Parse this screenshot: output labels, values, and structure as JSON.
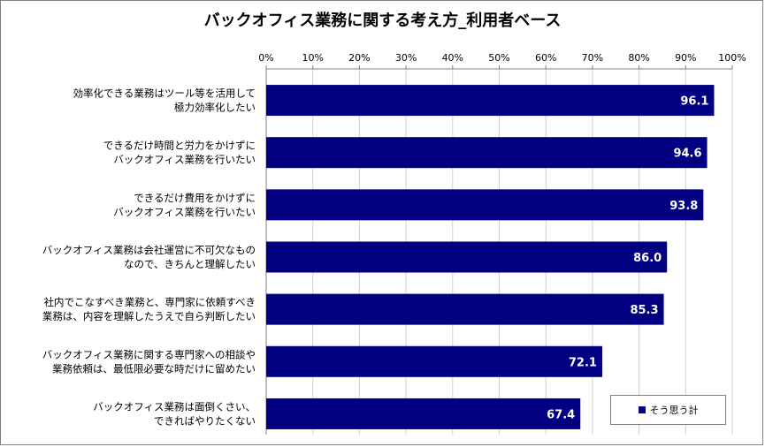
{
  "chart_data": {
    "type": "bar",
    "orientation": "horizontal",
    "title": "バックオフィス業務に関する考え方_利用者ベース",
    "x_ticks": [
      "0%",
      "10%",
      "20%",
      "30%",
      "40%",
      "50%",
      "60%",
      "70%",
      "80%",
      "90%",
      "100%"
    ],
    "xlim": [
      0,
      100
    ],
    "grid": true,
    "legend_position": "bottom-right",
    "categories": [
      [
        "効率化できる業務はツール等を活用して",
        "極力効率化したい"
      ],
      [
        "できるだけ時間と労力をかけずに",
        "バックオフィス業務を行いたい"
      ],
      [
        "できるだけ費用をかけずに",
        "バックオフィス業務を行いたい"
      ],
      [
        "バックオフィス業務は会社運営に不可欠なもの",
        "なので、きちんと理解したい"
      ],
      [
        "社内でこなすべき業務と、専門家に依頼すべき",
        "業務は、内容を理解したうえで自ら判断したい"
      ],
      [
        "バックオフィス業務に関する専門家への相談や",
        "業務依頼は、最低限必要な時だけに留めたい"
      ],
      [
        "バックオフィス業務は面倒くさい、",
        "できればやりたくない"
      ]
    ],
    "series": [
      {
        "name": "そう思う計",
        "color": "#000080",
        "values": [
          96.1,
          94.6,
          93.8,
          86.0,
          85.3,
          72.1,
          67.4
        ],
        "labels": [
          "96.1",
          "94.6",
          "93.8",
          "86.0",
          "85.3",
          "72.1",
          "67.4"
        ]
      }
    ]
  }
}
